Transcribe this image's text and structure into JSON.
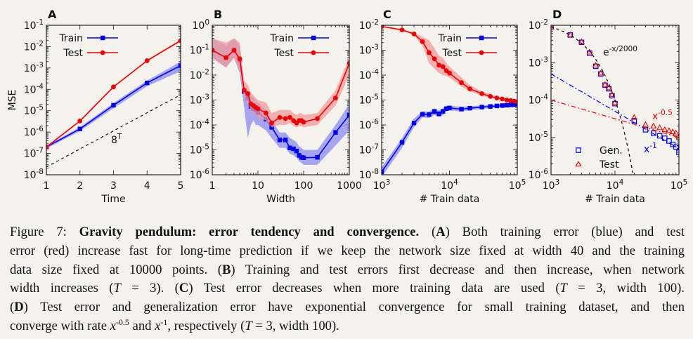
{
  "figure": {
    "panels": [
      {
        "letter": "A",
        "xlabel": "Time",
        "ylabel": "MSE"
      },
      {
        "letter": "B",
        "xlabel": "Width",
        "ylabel": ""
      },
      {
        "letter": "C",
        "xlabel": "# Train data",
        "ylabel": ""
      },
      {
        "letter": "D",
        "xlabel": "# Train data",
        "ylabel": ""
      }
    ]
  },
  "chart_data": [
    {
      "type": "line",
      "panel": "A",
      "xlabel": "Time",
      "ylabel": "MSE",
      "xscale": "linear",
      "yscale": "log",
      "xlim": [
        1,
        5
      ],
      "ylim": [
        1e-08,
        0.1
      ],
      "xticks": [
        {
          "v": 1,
          "label": "1"
        },
        {
          "v": 2,
          "label": "2"
        },
        {
          "v": 3,
          "label": "3"
        },
        {
          "v": 4,
          "label": "4"
        },
        {
          "v": 5,
          "label": "5"
        }
      ],
      "yticks": [
        {
          "e": -8,
          "label": "10",
          "exp": "-8"
        },
        {
          "e": -7,
          "label": "10",
          "exp": "-7"
        },
        {
          "e": -6,
          "label": "10",
          "exp": "-6"
        },
        {
          "e": -5,
          "label": "10",
          "exp": "-5"
        },
        {
          "e": -4,
          "label": "10",
          "exp": "-4"
        },
        {
          "e": -3,
          "label": "10",
          "exp": "-3"
        },
        {
          "e": -2,
          "label": "10",
          "exp": "-2"
        },
        {
          "e": -1,
          "label": "10",
          "exp": "-1"
        }
      ],
      "series": [
        {
          "name": "Train",
          "color": "#0000ee",
          "marker": "square",
          "x": [
            1,
            2,
            3,
            4,
            5
          ],
          "y": [
            2e-07,
            1.4e-06,
            1.8e-05,
            0.0002,
            0.0013
          ],
          "band_lo": [
            1.7e-07,
            1.1e-06,
            1.3e-05,
            0.00014,
            0.0007
          ],
          "band_hi": [
            2.3e-07,
            1.7e-06,
            2.3e-05,
            0.00026,
            0.002
          ]
        },
        {
          "name": "Test",
          "color": "#ee0000",
          "marker": "circle",
          "x": [
            1,
            2,
            3,
            4,
            5
          ],
          "y": [
            2e-07,
            3.3e-06,
            0.00013,
            0.0022,
            0.019
          ],
          "band_lo": [
            1.8e-07,
            3e-06,
            0.00012,
            0.002,
            0.017
          ],
          "band_hi": [
            2.2e-07,
            3.6e-06,
            0.00014,
            0.0024,
            0.021
          ]
        }
      ],
      "reference": {
        "label": "8",
        "sup": "T",
        "x": [
          1,
          5
        ],
        "y": [
          2.3e-08,
          5.6e-05
        ]
      },
      "legend": "top-left"
    },
    {
      "type": "line",
      "panel": "B",
      "xlabel": "Width",
      "ylabel": "",
      "xscale": "log",
      "yscale": "log",
      "xlim": [
        1,
        1000
      ],
      "ylim": [
        1e-06,
        1
      ],
      "xticks": [
        {
          "v": 1,
          "label": "1"
        },
        {
          "v": 10,
          "label": "10"
        },
        {
          "v": 100,
          "label": "100"
        },
        {
          "v": 1000,
          "label": "1000"
        }
      ],
      "yticks": [
        {
          "e": -6,
          "label": "10",
          "exp": "-6"
        },
        {
          "e": -5,
          "label": "10",
          "exp": "-5"
        },
        {
          "e": -4,
          "label": "10",
          "exp": "-4"
        },
        {
          "e": -3,
          "label": "10",
          "exp": "-3"
        },
        {
          "e": -2,
          "label": "10",
          "exp": "-2"
        },
        {
          "e": -1,
          "label": "10",
          "exp": "-1"
        },
        {
          "e": 0,
          "label": "10",
          "exp": "0"
        }
      ],
      "series": [
        {
          "name": "Train",
          "color": "#0000ee",
          "marker": "square",
          "x": [
            1,
            2,
            3,
            4,
            5,
            6,
            7,
            8,
            9,
            10,
            15,
            20,
            30,
            40,
            50,
            60,
            70,
            80,
            90,
            100,
            200,
            500,
            1000
          ],
          "y": [
            0.1,
            0.05,
            0.1,
            0.04,
            0.0022,
            0.0012,
            0.00055,
            0.00045,
            0.0004,
            0.00032,
            0.00017,
            8e-05,
            2.5e-05,
            2.5e-05,
            1.2e-05,
            1.1e-05,
            9e-06,
            6e-06,
            5e-06,
            4.8e-06,
            5e-06,
            5e-05,
            0.00025
          ],
          "band_lo": [
            0.05,
            0.02,
            0.05,
            0.012,
            0.0005,
            3e-05,
            0.0001,
            0.00015,
            0.0001,
            0.0001,
            6e-05,
            3e-05,
            1.2e-05,
            1.2e-05,
            7e-06,
            6e-06,
            5e-06,
            3.5e-06,
            3e-06,
            2.5e-06,
            2.5e-06,
            1.5e-05,
            6e-05
          ],
          "band_hi": [
            0.3,
            0.15,
            0.3,
            0.15,
            0.003,
            0.0025,
            0.0015,
            0.0012,
            0.001,
            0.0008,
            0.0004,
            0.00015,
            5e-05,
            5e-05,
            3e-05,
            2.5e-05,
            2e-05,
            1.4e-05,
            1.2e-05,
            1e-05,
            1e-05,
            0.0001,
            0.0007
          ]
        },
        {
          "name": "Test",
          "color": "#ee0000",
          "marker": "circle",
          "x": [
            1,
            2,
            3,
            4,
            5,
            6,
            7,
            8,
            9,
            10,
            15,
            20,
            30,
            40,
            50,
            60,
            70,
            80,
            90,
            100,
            200,
            500,
            1000
          ],
          "y": [
            0.1,
            0.05,
            0.1,
            0.045,
            0.0025,
            0.0018,
            0.0007,
            0.0006,
            0.0005,
            0.00045,
            0.0003,
            0.00012,
            0.0002,
            0.00018,
            0.0002,
            0.00015,
            0.00012,
            0.00015,
            0.00015,
            0.00013,
            0.00018,
            0.0012,
            0.03
          ],
          "band_lo": [
            0.05,
            0.02,
            0.05,
            0.015,
            0.0012,
            0.0008,
            0.00035,
            0.0003,
            0.00025,
            0.0002,
            0.00015,
            8e-05,
            0.0001,
            0.0001,
            0.00012,
            9e-05,
            8e-05,
            9e-05,
            9e-05,
            8e-05,
            0.0001,
            0.0006,
            0.01
          ],
          "band_hi": [
            0.3,
            0.2,
            0.3,
            0.2,
            0.006,
            0.004,
            0.002,
            0.0015,
            0.0012,
            0.001,
            0.0008,
            0.0003,
            0.0004,
            0.0004,
            0.0004,
            0.0003,
            0.00025,
            0.0003,
            0.0003,
            0.00025,
            0.0003,
            0.0025,
            0.05
          ]
        }
      ],
      "legend": "top-right"
    },
    {
      "type": "line",
      "panel": "C",
      "xlabel": "# Train data",
      "ylabel": "",
      "xscale": "log",
      "yscale": "log",
      "xlim": [
        1000,
        100000
      ],
      "ylim": [
        1e-08,
        0.01
      ],
      "xticks": [
        {
          "v": 1000,
          "label": "10",
          "exp": "3"
        },
        {
          "v": 10000,
          "label": "10",
          "exp": "4"
        },
        {
          "v": 100000,
          "label": "10",
          "exp": "5"
        }
      ],
      "yticks": [
        {
          "e": -8,
          "label": "10",
          "exp": "-8"
        },
        {
          "e": -7,
          "label": "10",
          "exp": "-7"
        },
        {
          "e": -6,
          "label": "10",
          "exp": "-6"
        },
        {
          "e": -5,
          "label": "10",
          "exp": "-5"
        },
        {
          "e": -4,
          "label": "10",
          "exp": "-4"
        },
        {
          "e": -3,
          "label": "10",
          "exp": "-3"
        },
        {
          "e": -2,
          "label": "10",
          "exp": "-2"
        }
      ],
      "series": [
        {
          "name": "Train",
          "color": "#0000ee",
          "marker": "square",
          "x": [
            1000,
            2000,
            3000,
            4000,
            5000,
            6000,
            7000,
            8000,
            9000,
            10000,
            15000,
            20000,
            30000,
            40000,
            50000,
            60000,
            70000,
            80000,
            90000,
            100000
          ],
          "y": [
            1.3e-08,
            2e-07,
            1.2e-06,
            2.7e-06,
            2.6e-06,
            3.5e-06,
            2.8e-06,
            3.5e-06,
            4.5e-06,
            4.8e-06,
            4.3e-06,
            4.7e-06,
            5.2e-06,
            5.5e-06,
            5.8e-06,
            6e-06,
            6.2e-06,
            6.4e-06,
            6.5e-06,
            6.8e-06
          ],
          "band_lo": [
            8e-09,
            1.2e-07,
            8e-07,
            2e-06,
            1.9e-06,
            2.5e-06,
            2e-06,
            2.5e-06,
            3.5e-06,
            3.8e-06,
            3.5e-06,
            3.9e-06,
            4.4e-06,
            4.8e-06,
            5e-06,
            5.2e-06,
            5.4e-06,
            5.6e-06,
            5.7e-06,
            6e-06
          ],
          "band_hi": [
            2e-08,
            3e-07,
            1.8e-06,
            3.5e-06,
            3.4e-06,
            4.6e-06,
            3.8e-06,
            4.6e-06,
            5.8e-06,
            6e-06,
            5.3e-06,
            5.6e-06,
            6.1e-06,
            6.4e-06,
            6.7e-06,
            6.9e-06,
            7.1e-06,
            7.3e-06,
            7.4e-06,
            7.7e-06
          ]
        },
        {
          "name": "Test",
          "color": "#ee0000",
          "marker": "circle",
          "x": [
            1000,
            2000,
            3000,
            4000,
            5000,
            6000,
            7000,
            8000,
            9000,
            10000,
            15000,
            20000,
            30000,
            40000,
            50000,
            60000,
            70000,
            80000,
            90000,
            100000
          ],
          "y": [
            0.009,
            0.0065,
            0.0045,
            0.0022,
            0.0008,
            0.00045,
            0.00025,
            0.00022,
            0.00015,
            0.00012,
            5e-05,
            2.8e-05,
            1.8e-05,
            1.4e-05,
            1.2e-05,
            1.1e-05,
            1e-05,
            9.5e-06,
            9e-06,
            8.5e-06
          ],
          "band_lo": [
            0.0085,
            0.006,
            0.004,
            0.0015,
            0.0003,
            0.00018,
            0.00012,
            0.0001,
            9e-05,
            8e-05,
            3.5e-05,
            2.2e-05,
            1.5e-05,
            1.2e-05,
            1.1e-05,
            1e-05,
            9.2e-06,
            8.8e-06,
            8.3e-06,
            7.8e-06
          ],
          "band_hi": [
            0.0095,
            0.007,
            0.005,
            0.0035,
            0.0025,
            0.0012,
            0.0006,
            0.0005,
            0.0003,
            0.00022,
            8e-05,
            4e-05,
            2.2e-05,
            1.7e-05,
            1.4e-05,
            1.2e-05,
            1.1e-05,
            1.02e-05,
            9.8e-06,
            9.3e-06
          ]
        }
      ],
      "legend": "top-right"
    },
    {
      "type": "scatter",
      "panel": "D",
      "xlabel": "# Train data",
      "ylabel": "",
      "xscale": "log",
      "yscale": "log",
      "xlim": [
        1000,
        100000
      ],
      "ylim": [
        1e-06,
        0.01
      ],
      "xticks": [
        {
          "v": 1000,
          "label": "10",
          "exp": "3"
        },
        {
          "v": 10000,
          "label": "10",
          "exp": "4"
        },
        {
          "v": 100000,
          "label": "10",
          "exp": "5"
        }
      ],
      "yticks": [
        {
          "e": -6,
          "label": "10",
          "exp": "-6"
        },
        {
          "e": -5,
          "label": "10",
          "exp": "-5"
        },
        {
          "e": -4,
          "label": "10",
          "exp": "-4"
        },
        {
          "e": -3,
          "label": "10",
          "exp": "-3"
        },
        {
          "e": -2,
          "label": "10",
          "exp": "-2"
        }
      ],
      "series": [
        {
          "name": "Gen.",
          "color": "#0000ee",
          "marker": "open-square",
          "x": [
            1000,
            2000,
            3000,
            4000,
            5000,
            6000,
            7000,
            8000,
            9000,
            10000,
            20000,
            30000,
            40000,
            50000,
            60000,
            70000,
            80000,
            90000,
            100000
          ],
          "y": [
            0.009,
            0.0055,
            0.0035,
            0.0018,
            0.0008,
            0.0005,
            0.00025,
            0.0002,
            0.00013,
            8e-05,
            2.8e-05,
            1.6e-05,
            1.3e-05,
            1.1e-05,
            9.5e-06,
            8e-06,
            6.5e-06,
            5.5e-06,
            4e-06
          ]
        },
        {
          "name": "Test",
          "color": "#ee0000",
          "marker": "open-triangle",
          "x": [
            1000,
            2000,
            3000,
            4000,
            5000,
            6000,
            7000,
            8000,
            9000,
            10000,
            20000,
            30000,
            40000,
            50000,
            60000,
            70000,
            80000,
            90000,
            100000
          ],
          "y": [
            0.009,
            0.0055,
            0.0036,
            0.0019,
            0.00085,
            0.00052,
            0.00026,
            0.00021,
            0.00014,
            8.5e-05,
            3.4e-05,
            2.2e-05,
            2e-05,
            1.8e-05,
            1.6e-05,
            1.5e-05,
            1.4e-05,
            1.3e-05,
            1e-05
          ]
        }
      ],
      "fits": [
        {
          "label": "e",
          "sup": "-x/2000",
          "color": "#000000",
          "dash": "4,4",
          "note": "exponential fit"
        },
        {
          "label": "x",
          "sup": "-0.5",
          "color": "#ee0000",
          "dash": "7,3,2,3",
          "x": [
            1000,
            100000
          ],
          "y": [
            0.0001,
            1e-05
          ]
        },
        {
          "label": "x",
          "sup": "-1",
          "color": "#0000ee",
          "dash": "7,3,2,3",
          "x": [
            1000,
            100000
          ],
          "y": [
            0.0005,
            5e-06
          ]
        }
      ],
      "legend": "bottom-left"
    }
  ],
  "caption": {
    "label": "Figure 7:",
    "title": "Gravity pendulum: error tendency and convergence.",
    "lines": [
      [
        "(A) Both training error (blue) and test"
      ],
      [
        "error (red) increase fast for long-time prediction if we keep the network size fixed at width 40 and the training"
      ],
      [
        "data size fixed at 10000 points. (B) Training and test errors first decrease and then increase, when network"
      ],
      [
        "width increases (T = 3). (C) Test error decreases when more training data are used (T = 3, width 100)."
      ],
      [
        "(D) Test error and generalization error have exponential convergence for small training dataset, and then"
      ],
      [
        "converge with rate x",
        "-0.5",
        " and x",
        "-1",
        ", respectively (T = 3, width 100)."
      ]
    ]
  }
}
